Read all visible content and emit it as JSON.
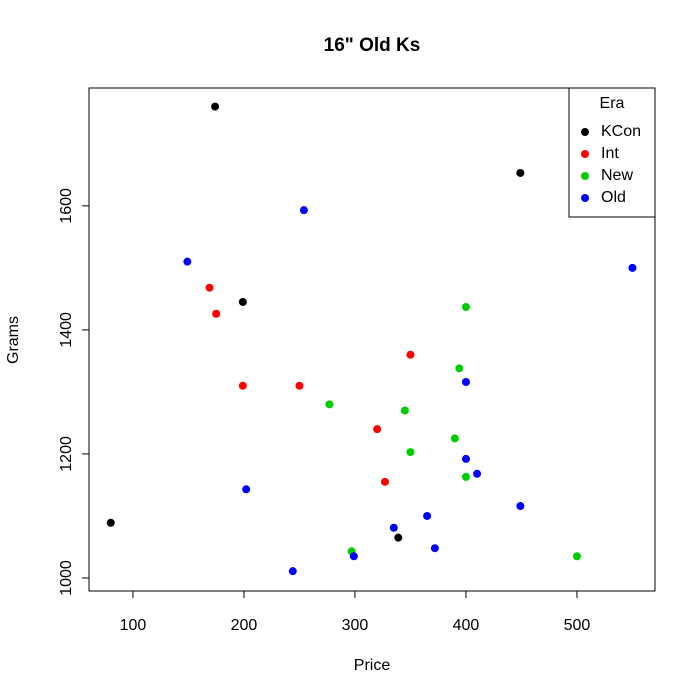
{
  "chart_data": {
    "type": "scatter",
    "title": "16\" Old Ks",
    "x_label": "Price",
    "y_label": "Grams",
    "xlim": [
      60.4,
      570.3
    ],
    "ylim": [
      979,
      1790
    ],
    "xticks": [
      100,
      200,
      300,
      400,
      500
    ],
    "yticks": [
      1000,
      1200,
      1400,
      1600
    ],
    "legend_title": "Era",
    "legend_position": "topright",
    "series": [
      {
        "name": "KCon",
        "color": "#000000",
        "x": [
          174,
          449,
          199,
          80,
          339
        ],
        "values": [
          1760,
          1653,
          1445,
          1089,
          1065
        ]
      },
      {
        "name": "Int",
        "color": "#ff0000",
        "x": [
          169,
          175,
          199,
          250,
          320,
          350,
          327
        ],
        "values": [
          1468,
          1426,
          1310,
          1310,
          1240,
          1360,
          1155
        ]
      },
      {
        "name": "New",
        "color": "#00cd00",
        "x": [
          400,
          394,
          277,
          345,
          390,
          350,
          400,
          297,
          500
        ],
        "values": [
          1437,
          1338,
          1280,
          1270,
          1225,
          1203,
          1163,
          1043,
          1035
        ]
      },
      {
        "name": "Old",
        "color": "#0000ff",
        "x": [
          254,
          149,
          550,
          400,
          400,
          410,
          202,
          449,
          365,
          335,
          299,
          372,
          244
        ],
        "values": [
          1593,
          1510,
          1500,
          1316,
          1192,
          1168,
          1143,
          1116,
          1100,
          1081,
          1035,
          1048,
          1011
        ]
      }
    ]
  }
}
